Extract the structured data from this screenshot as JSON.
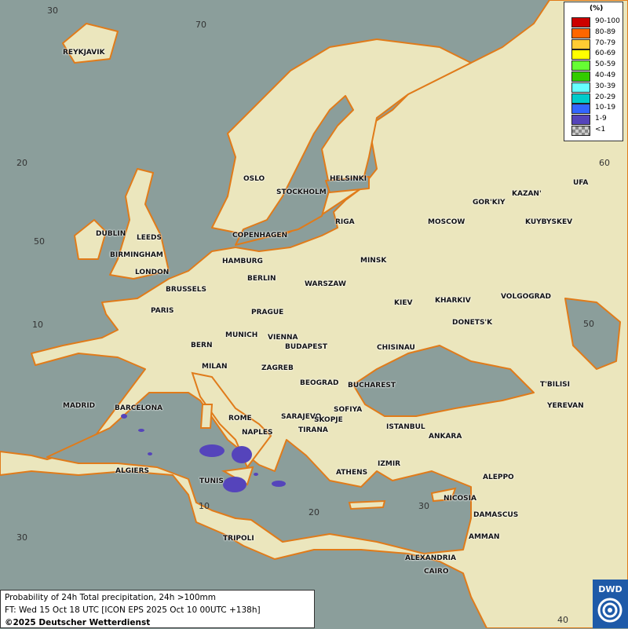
{
  "legend": {
    "unit": "(%)",
    "classes": [
      {
        "label": "90-100",
        "color": "#cc0000"
      },
      {
        "label": "80-89",
        "color": "#ff6600"
      },
      {
        "label": "70-79",
        "color": "#ffcc33"
      },
      {
        "label": "60-69",
        "color": "#ffff00"
      },
      {
        "label": "50-59",
        "color": "#66ff33"
      },
      {
        "label": "40-49",
        "color": "#33cc00"
      },
      {
        "label": "30-39",
        "color": "#66ffff"
      },
      {
        "label": "20-29",
        "color": "#00cccc"
      },
      {
        "label": "10-19",
        "color": "#3366ff"
      },
      {
        "label": "1-9",
        "color": "#5544bb"
      },
      {
        "label": "<1",
        "color": "checker"
      }
    ]
  },
  "info": {
    "title": "Probability of 24h Total precipitation, 24h >100mm",
    "forecast": "FT: Wed 15 Oct 18 UTC [ICON EPS 2025 Oct 10 00UTC +138h]",
    "copyright": "©2025 Deutscher Wetterdienst"
  },
  "logo": {
    "text": "DWD"
  },
  "grid_labels": [
    "30",
    "70",
    "20",
    "50",
    "10",
    "10",
    "20",
    "30",
    "30",
    "40",
    "60",
    "50",
    "70"
  ],
  "cities": [
    "REYKJAVIK",
    "OSLO",
    "STOCKHOLM",
    "HELSINKI",
    "DUBLIN",
    "LEEDS",
    "BIRMINGHAM",
    "LONDON",
    "COPENHAGEN",
    "RIGA",
    "HAMBURG",
    "BERLIN",
    "MINSK",
    "WARSZAW",
    "BRUSSELS",
    "PARIS",
    "PRAGUE",
    "KIEV",
    "KHARKIV",
    "MOSCOW",
    "GOR'KIY",
    "KAZAN'",
    "UFA",
    "KUYBYSKEV",
    "VOLGOGRAD",
    "DONETS'K",
    "MUNICH",
    "VIENNA",
    "BERN",
    "BUDAPEST",
    "CHISINAU",
    "MILAN",
    "ZAGREB",
    "BEOGRAD",
    "BUCHAREST",
    "T'BILISI",
    "YEREVAN",
    "MADRID",
    "BARCELONA",
    "SARAJEVO",
    "SOFIYA",
    "ROME",
    "SKOPJE",
    "TIRANA",
    "ISTANBUL",
    "ANKARA",
    "NAPLES",
    "ALGIERS",
    "TUNIS",
    "IZMIR",
    "ATHENS",
    "ALEPPO",
    "NICOSIA",
    "DAMASCUS",
    "AMMAN",
    "TRIPOLI",
    "ALEXANDRIA",
    "CAIRO"
  ],
  "colors": {
    "sea": "#8b9e9b",
    "land": "#ebe6bd",
    "coast": "#e07b1a",
    "precip_1_9": "#5544bb"
  }
}
